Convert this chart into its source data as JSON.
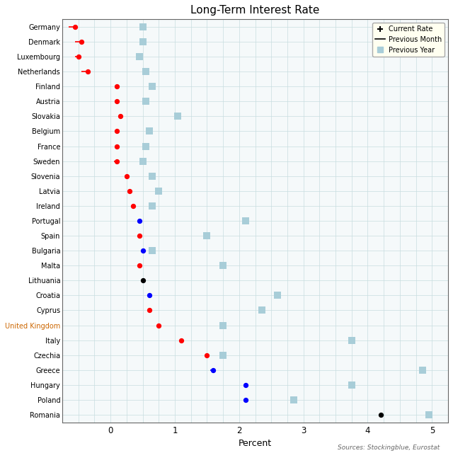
{
  "title": "Long-Term Interest Rate",
  "xlabel": "Percent",
  "source": "Sources: Stockingblue, Eurostat",
  "countries": [
    "Germany",
    "Denmark",
    "Luxembourg",
    "Netherlands",
    "Finland",
    "Austria",
    "Slovakia",
    "Belgium",
    "France",
    "Sweden",
    "Slovenia",
    "Latvia",
    "Ireland",
    "Portugal",
    "Spain",
    "Bulgaria",
    "Malta",
    "Lithuania",
    "Croatia",
    "Cyprus",
    "United Kingdom",
    "Italy",
    "Czechia",
    "Greece",
    "Hungary",
    "Poland",
    "Romania"
  ],
  "current_rate": [
    -0.55,
    -0.45,
    -0.5,
    -0.35,
    0.1,
    0.1,
    0.15,
    0.1,
    0.1,
    0.1,
    0.25,
    0.3,
    0.35,
    0.45,
    0.45,
    0.5,
    0.45,
    0.5,
    0.6,
    0.6,
    0.75,
    1.1,
    1.5,
    1.6,
    2.1,
    2.1,
    4.2
  ],
  "prev_month": [
    -0.65,
    -0.55,
    -0.55,
    -0.45,
    0.07,
    0.07,
    0.12,
    0.07,
    0.07,
    0.05,
    0.22,
    0.28,
    0.32,
    0.45,
    0.43,
    0.47,
    0.43,
    0.5,
    0.58,
    0.58,
    0.73,
    1.08,
    1.47,
    1.55,
    2.08,
    2.07,
    4.2
  ],
  "prev_year": [
    0.5,
    0.5,
    0.45,
    0.55,
    0.65,
    0.55,
    1.05,
    0.6,
    0.55,
    0.5,
    0.65,
    0.75,
    0.65,
    2.1,
    1.5,
    0.65,
    1.75,
    null,
    2.6,
    2.35,
    1.75,
    3.75,
    1.75,
    4.85,
    3.75,
    2.85,
    4.95
  ],
  "current_color": [
    "red",
    "red",
    "red",
    "red",
    "red",
    "red",
    "red",
    "red",
    "red",
    "red",
    "red",
    "red",
    "red",
    "blue",
    "red",
    "blue",
    "red",
    "black",
    "blue",
    "red",
    "red",
    "red",
    "red",
    "blue",
    "blue",
    "blue",
    "black"
  ],
  "prev_month_color": [
    "red",
    "red",
    "red",
    "red",
    "red",
    "red",
    "red",
    "red",
    "red",
    "red",
    "red",
    "black",
    "red",
    "blue",
    "red",
    "blue",
    "red",
    "black",
    "blue",
    "red",
    "red",
    "black",
    "red",
    "blue",
    "blue",
    "blue",
    "black"
  ],
  "label_colors": {
    "United Kingdom": "#cc6600"
  },
  "xlim": [
    -0.75,
    5.25
  ],
  "xticks": [
    0,
    1,
    2,
    3,
    4,
    5
  ],
  "grid_color": "#c8dde0",
  "bg_color": "#f5f9fa",
  "legend_bg": "#fffff0",
  "dot_size": 18,
  "sq_size": 45
}
